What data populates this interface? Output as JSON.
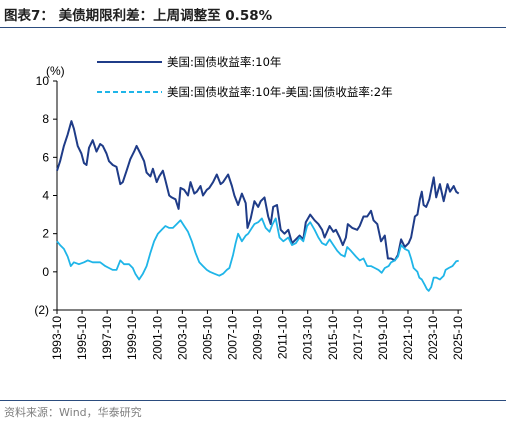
{
  "header": {
    "title": "图表7：  美债期限利差：上周调整至 0.58%"
  },
  "footer": {
    "source": "资料来源：Wind，华泰研究"
  },
  "chart_data": {
    "type": "line",
    "title": "图表7：  美债期限利差：上周调整至 0.58%",
    "ylabel": "(%)",
    "xlabel": "",
    "ylim": [
      -2,
      10
    ],
    "xlim": [
      1993.75,
      2025.9
    ],
    "y_ticks": [
      10,
      8,
      6,
      4,
      2,
      0,
      -2
    ],
    "y_tick_labels": [
      "10",
      "8",
      "6",
      "4",
      "2",
      "0",
      "(2)"
    ],
    "x_ticks": [
      "1993-10",
      "1995-10",
      "1997-10",
      "1999-10",
      "2001-10",
      "2003-10",
      "2005-10",
      "2007-10",
      "2009-10",
      "2011-10",
      "2013-10",
      "2015-10",
      "2017-10",
      "2019-10",
      "2021-10",
      "2023-10",
      "2025-10"
    ],
    "grid": false,
    "legend_position": "top",
    "series": [
      {
        "name": "美国:国债收益率:10年",
        "color": "#1f3c88",
        "style": "solid",
        "points": [
          [
            1993.75,
            5.3
          ],
          [
            1994.0,
            5.8
          ],
          [
            1994.3,
            6.6
          ],
          [
            1994.6,
            7.2
          ],
          [
            1994.9,
            7.9
          ],
          [
            1995.1,
            7.5
          ],
          [
            1995.4,
            6.6
          ],
          [
            1995.7,
            6.2
          ],
          [
            1995.9,
            5.7
          ],
          [
            1996.1,
            5.6
          ],
          [
            1996.3,
            6.5
          ],
          [
            1996.6,
            6.9
          ],
          [
            1996.9,
            6.3
          ],
          [
            1997.2,
            6.7
          ],
          [
            1997.4,
            6.6
          ],
          [
            1997.7,
            6.2
          ],
          [
            1997.9,
            5.8
          ],
          [
            1998.2,
            5.6
          ],
          [
            1998.5,
            5.5
          ],
          [
            1998.8,
            4.6
          ],
          [
            1999.0,
            4.7
          ],
          [
            1999.3,
            5.3
          ],
          [
            1999.6,
            5.9
          ],
          [
            1999.9,
            6.3
          ],
          [
            2000.1,
            6.6
          ],
          [
            2000.4,
            6.2
          ],
          [
            2000.7,
            5.8
          ],
          [
            2000.9,
            5.2
          ],
          [
            2001.2,
            5.0
          ],
          [
            2001.4,
            5.4
          ],
          [
            2001.7,
            4.7
          ],
          [
            2001.9,
            5.0
          ],
          [
            2002.2,
            5.3
          ],
          [
            2002.4,
            4.8
          ],
          [
            2002.7,
            4.0
          ],
          [
            2002.9,
            3.9
          ],
          [
            2003.2,
            3.8
          ],
          [
            2003.45,
            3.3
          ],
          [
            2003.6,
            4.4
          ],
          [
            2003.9,
            4.3
          ],
          [
            2004.2,
            4.0
          ],
          [
            2004.4,
            4.7
          ],
          [
            2004.7,
            4.1
          ],
          [
            2004.9,
            4.2
          ],
          [
            2005.2,
            4.5
          ],
          [
            2005.4,
            4.0
          ],
          [
            2005.7,
            4.3
          ],
          [
            2005.9,
            4.4
          ],
          [
            2006.2,
            4.7
          ],
          [
            2006.5,
            5.1
          ],
          [
            2006.8,
            4.6
          ],
          [
            2007.0,
            4.7
          ],
          [
            2007.4,
            5.1
          ],
          [
            2007.7,
            4.5
          ],
          [
            2007.9,
            4.0
          ],
          [
            2008.2,
            3.5
          ],
          [
            2008.5,
            4.1
          ],
          [
            2008.8,
            3.6
          ],
          [
            2008.95,
            2.3
          ],
          [
            2009.2,
            2.8
          ],
          [
            2009.5,
            3.7
          ],
          [
            2009.8,
            3.4
          ],
          [
            2010.0,
            3.7
          ],
          [
            2010.3,
            3.9
          ],
          [
            2010.6,
            2.9
          ],
          [
            2010.8,
            2.5
          ],
          [
            2011.0,
            3.4
          ],
          [
            2011.3,
            3.5
          ],
          [
            2011.6,
            2.2
          ],
          [
            2011.9,
            2.0
          ],
          [
            2012.2,
            2.2
          ],
          [
            2012.5,
            1.5
          ],
          [
            2012.8,
            1.7
          ],
          [
            2013.1,
            1.9
          ],
          [
            2013.4,
            1.7
          ],
          [
            2013.6,
            2.6
          ],
          [
            2013.95,
            3.0
          ],
          [
            2014.3,
            2.7
          ],
          [
            2014.6,
            2.5
          ],
          [
            2014.9,
            2.2
          ],
          [
            2015.1,
            1.8
          ],
          [
            2015.5,
            2.4
          ],
          [
            2015.8,
            2.1
          ],
          [
            2016.0,
            2.2
          ],
          [
            2016.3,
            1.8
          ],
          [
            2016.55,
            1.4
          ],
          [
            2016.8,
            1.8
          ],
          [
            2016.95,
            2.5
          ],
          [
            2017.3,
            2.3
          ],
          [
            2017.7,
            2.2
          ],
          [
            2017.9,
            2.4
          ],
          [
            2018.2,
            2.9
          ],
          [
            2018.5,
            2.9
          ],
          [
            2018.8,
            3.2
          ],
          [
            2019.0,
            2.7
          ],
          [
            2019.3,
            2.5
          ],
          [
            2019.6,
            1.6
          ],
          [
            2019.9,
            1.9
          ],
          [
            2020.15,
            0.7
          ],
          [
            2020.4,
            0.7
          ],
          [
            2020.7,
            0.6
          ],
          [
            2020.95,
            0.9
          ],
          [
            2021.2,
            1.7
          ],
          [
            2021.5,
            1.3
          ],
          [
            2021.8,
            1.5
          ],
          [
            2022.0,
            1.8
          ],
          [
            2022.3,
            2.9
          ],
          [
            2022.5,
            3.0
          ],
          [
            2022.7,
            3.8
          ],
          [
            2022.85,
            4.2
          ],
          [
            2023.0,
            3.5
          ],
          [
            2023.2,
            3.4
          ],
          [
            2023.45,
            3.8
          ],
          [
            2023.8,
            4.95
          ],
          [
            2024.0,
            3.9
          ],
          [
            2024.3,
            4.6
          ],
          [
            2024.6,
            3.7
          ],
          [
            2024.9,
            4.6
          ],
          [
            2025.1,
            4.2
          ],
          [
            2025.4,
            4.5
          ],
          [
            2025.6,
            4.2
          ],
          [
            2025.8,
            4.1
          ]
        ]
      },
      {
        "name": "美国:国债收益率:10年-美国:国债收益率:2年",
        "color": "#1fb5e8",
        "style": "dashed",
        "points": [
          [
            1993.75,
            1.6
          ],
          [
            1994.0,
            1.4
          ],
          [
            1994.3,
            1.2
          ],
          [
            1994.6,
            0.8
          ],
          [
            1994.85,
            0.3
          ],
          [
            1995.1,
            0.5
          ],
          [
            1995.5,
            0.4
          ],
          [
            1995.9,
            0.5
          ],
          [
            1996.2,
            0.6
          ],
          [
            1996.6,
            0.5
          ],
          [
            1996.9,
            0.5
          ],
          [
            1997.2,
            0.5
          ],
          [
            1997.6,
            0.3
          ],
          [
            1997.9,
            0.2
          ],
          [
            1998.2,
            0.1
          ],
          [
            1998.5,
            0.1
          ],
          [
            1998.8,
            0.6
          ],
          [
            1999.1,
            0.4
          ],
          [
            1999.5,
            0.4
          ],
          [
            1999.8,
            0.2
          ],
          [
            2000.0,
            -0.1
          ],
          [
            2000.3,
            -0.4
          ],
          [
            2000.6,
            -0.1
          ],
          [
            2000.9,
            0.3
          ],
          [
            2001.2,
            1.0
          ],
          [
            2001.5,
            1.6
          ],
          [
            2001.8,
            2.0
          ],
          [
            2002.1,
            2.2
          ],
          [
            2002.4,
            2.4
          ],
          [
            2002.7,
            2.3
          ],
          [
            2003.0,
            2.3
          ],
          [
            2003.3,
            2.5
          ],
          [
            2003.6,
            2.7
          ],
          [
            2003.9,
            2.4
          ],
          [
            2004.2,
            2.1
          ],
          [
            2004.5,
            1.6
          ],
          [
            2004.8,
            1.0
          ],
          [
            2005.1,
            0.5
          ],
          [
            2005.4,
            0.3
          ],
          [
            2005.7,
            0.1
          ],
          [
            2005.95,
            0.0
          ],
          [
            2006.3,
            -0.1
          ],
          [
            2006.7,
            -0.2
          ],
          [
            2007.0,
            -0.1
          ],
          [
            2007.3,
            0.1
          ],
          [
            2007.5,
            0.2
          ],
          [
            2007.8,
            0.9
          ],
          [
            2008.0,
            1.5
          ],
          [
            2008.2,
            2.0
          ],
          [
            2008.5,
            1.6
          ],
          [
            2008.8,
            1.9
          ],
          [
            2009.0,
            2.0
          ],
          [
            2009.3,
            2.3
          ],
          [
            2009.5,
            2.5
          ],
          [
            2009.8,
            2.6
          ],
          [
            2010.1,
            2.8
          ],
          [
            2010.4,
            2.3
          ],
          [
            2010.7,
            2.1
          ],
          [
            2010.95,
            2.5
          ],
          [
            2011.2,
            2.8
          ],
          [
            2011.5,
            1.8
          ],
          [
            2011.8,
            1.6
          ],
          [
            2012.2,
            1.8
          ],
          [
            2012.5,
            1.4
          ],
          [
            2012.8,
            1.5
          ],
          [
            2013.1,
            1.8
          ],
          [
            2013.4,
            1.6
          ],
          [
            2013.7,
            2.4
          ],
          [
            2013.95,
            2.6
          ],
          [
            2014.3,
            2.2
          ],
          [
            2014.6,
            1.8
          ],
          [
            2014.9,
            1.5
          ],
          [
            2015.2,
            1.4
          ],
          [
            2015.5,
            1.7
          ],
          [
            2015.8,
            1.4
          ],
          [
            2016.1,
            1.1
          ],
          [
            2016.4,
            0.9
          ],
          [
            2016.7,
            0.8
          ],
          [
            2016.9,
            1.3
          ],
          [
            2017.2,
            1.1
          ],
          [
            2017.6,
            0.8
          ],
          [
            2017.9,
            0.6
          ],
          [
            2018.2,
            0.7
          ],
          [
            2018.5,
            0.3
          ],
          [
            2018.8,
            0.3
          ],
          [
            2019.1,
            0.2
          ],
          [
            2019.4,
            0.1
          ],
          [
            2019.65,
            -0.05
          ],
          [
            2019.9,
            0.2
          ],
          [
            2020.2,
            0.3
          ],
          [
            2020.4,
            0.5
          ],
          [
            2020.7,
            0.6
          ],
          [
            2020.95,
            0.8
          ],
          [
            2021.2,
            1.4
          ],
          [
            2021.5,
            1.2
          ],
          [
            2021.8,
            1.1
          ],
          [
            2022.0,
            0.7
          ],
          [
            2022.2,
            0.2
          ],
          [
            2022.5,
            0.0
          ],
          [
            2022.65,
            -0.3
          ],
          [
            2022.85,
            -0.4
          ],
          [
            2023.1,
            -0.7
          ],
          [
            2023.25,
            -0.9
          ],
          [
            2023.4,
            -1.0
          ],
          [
            2023.6,
            -0.8
          ],
          [
            2023.8,
            -0.3
          ],
          [
            2024.0,
            -0.3
          ],
          [
            2024.3,
            -0.4
          ],
          [
            2024.6,
            -0.2
          ],
          [
            2024.75,
            0.1
          ],
          [
            2025.0,
            0.2
          ],
          [
            2025.3,
            0.3
          ],
          [
            2025.6,
            0.55
          ],
          [
            2025.8,
            0.58
          ]
        ]
      }
    ]
  }
}
